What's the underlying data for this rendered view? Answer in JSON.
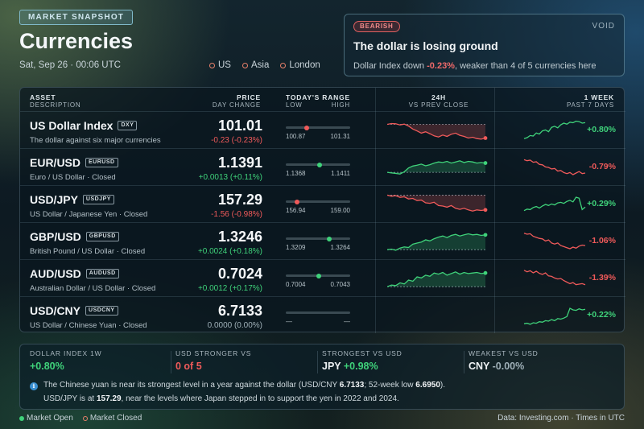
{
  "header": {
    "badge": "MARKET SNAPSHOT",
    "title": "Currencies",
    "date": "Sat, Sep 26 · 00:06 UTC",
    "sessions": [
      "US",
      "Asia",
      "London"
    ]
  },
  "alert": {
    "badge": "BEARISH",
    "logo": "VOID",
    "headline": "The dollar is losing ground",
    "detail_prefix": "Dollar Index down ",
    "detail_value": "-0.23%",
    "detail_suffix": ", weaker than 4 of 5 currencies here"
  },
  "table": {
    "headers": {
      "asset": "ASSET",
      "description": "DESCRIPTION",
      "price": "PRICE",
      "day_change": "DAY CHANGE",
      "range": "TODAY'S RANGE",
      "low": "LOW",
      "high": "HIGH",
      "h24": "24H",
      "vs_prev": "VS PREV CLOSE",
      "week": "1 WEEK",
      "past7": "PAST 7 DAYS"
    },
    "rows": [
      {
        "name": "US Dollar Index",
        "ticker": "DXY",
        "desc": "The dollar against six major currencies",
        "status": "",
        "price": "101.01",
        "change": "-0.23 (-0.23%)",
        "dir": "down",
        "low": "100.87",
        "high": "101.31",
        "range_pos": 0.32,
        "week_change": "+0.80%",
        "week_dir": "up",
        "h24": [
          0.72,
          0.75,
          0.74,
          0.7,
          0.73,
          0.66,
          0.55,
          0.48,
          0.4,
          0.45,
          0.38,
          0.3,
          0.26,
          0.33,
          0.28,
          0.36,
          0.4,
          0.32,
          0.28,
          0.22,
          0.25,
          0.2,
          0.18,
          0.22
        ],
        "week": [
          0.18,
          0.22,
          0.3,
          0.28,
          0.4,
          0.36,
          0.48,
          0.52,
          0.45,
          0.62,
          0.66,
          0.6,
          0.72,
          0.78,
          0.74,
          0.82,
          0.8,
          0.86,
          0.84,
          0.78,
          0.8
        ]
      },
      {
        "name": "EUR/USD",
        "ticker": "EURUSD",
        "desc": "Euro / US Dollar",
        "status": "Closed",
        "price": "1.1391",
        "change": "+0.0013 (+0.11%)",
        "dir": "up",
        "low": "1.1368",
        "high": "1.1411",
        "range_pos": 0.53,
        "week_change": "-0.79%",
        "week_dir": "down",
        "h24": [
          0.32,
          0.3,
          0.28,
          0.26,
          0.34,
          0.48,
          0.55,
          0.58,
          0.62,
          0.56,
          0.6,
          0.66,
          0.7,
          0.68,
          0.72,
          0.66,
          0.7,
          0.74,
          0.68,
          0.72,
          0.7,
          0.66,
          0.68,
          0.66
        ],
        "week": [
          0.8,
          0.76,
          0.78,
          0.7,
          0.72,
          0.62,
          0.6,
          0.52,
          0.5,
          0.44,
          0.46,
          0.36,
          0.38,
          0.3,
          0.26,
          0.3,
          0.22,
          0.28,
          0.34,
          0.26,
          0.28
        ]
      },
      {
        "name": "USD/JPY",
        "ticker": "USDJPY",
        "desc": "US Dollar / Japanese Yen",
        "status": "Closed",
        "price": "157.29",
        "change": "-1.56 (-0.98%)",
        "dir": "down",
        "low": "156.94",
        "high": "159.00",
        "range_pos": 0.17,
        "week_change": "+0.29%",
        "week_dir": "up",
        "h24": [
          0.84,
          0.8,
          0.82,
          0.76,
          0.78,
          0.7,
          0.72,
          0.64,
          0.66,
          0.56,
          0.54,
          0.58,
          0.46,
          0.44,
          0.4,
          0.46,
          0.36,
          0.32,
          0.36,
          0.3,
          0.26,
          0.3,
          0.28,
          0.3
        ],
        "week": [
          0.26,
          0.32,
          0.3,
          0.38,
          0.42,
          0.36,
          0.44,
          0.5,
          0.46,
          0.52,
          0.48,
          0.56,
          0.58,
          0.54,
          0.62,
          0.66,
          0.6,
          0.78,
          0.74,
          0.3,
          0.4
        ]
      },
      {
        "name": "GBP/USD",
        "ticker": "GBPUSD",
        "desc": "British Pound / US Dollar",
        "status": "Closed",
        "price": "1.3246",
        "change": "+0.0024 (+0.18%)",
        "dir": "up",
        "low": "1.3209",
        "high": "1.3264",
        "range_pos": 0.67,
        "week_change": "-1.06%",
        "week_dir": "down",
        "h24": [
          0.2,
          0.22,
          0.18,
          0.26,
          0.3,
          0.28,
          0.4,
          0.44,
          0.48,
          0.56,
          0.52,
          0.6,
          0.66,
          0.7,
          0.64,
          0.72,
          0.76,
          0.7,
          0.74,
          0.78,
          0.74,
          0.76,
          0.72,
          0.74
        ],
        "week": [
          0.82,
          0.78,
          0.8,
          0.7,
          0.66,
          0.62,
          0.6,
          0.52,
          0.56,
          0.44,
          0.4,
          0.44,
          0.34,
          0.3,
          0.26,
          0.22,
          0.28,
          0.24,
          0.32,
          0.36,
          0.34
        ]
      },
      {
        "name": "AUD/USD",
        "ticker": "AUDUSD",
        "desc": "Australian Dollar / US Dollar",
        "status": "Closed",
        "price": "0.7024",
        "change": "+0.0012 (+0.17%)",
        "dir": "up",
        "low": "0.7004",
        "high": "0.7043",
        "range_pos": 0.51,
        "week_change": "-1.39%",
        "week_dir": "down",
        "h24": [
          0.2,
          0.26,
          0.24,
          0.34,
          0.3,
          0.44,
          0.4,
          0.56,
          0.52,
          0.62,
          0.58,
          0.7,
          0.66,
          0.72,
          0.62,
          0.68,
          0.74,
          0.66,
          0.72,
          0.68,
          0.7,
          0.72,
          0.68,
          0.7
        ],
        "week": [
          0.82,
          0.76,
          0.8,
          0.72,
          0.78,
          0.7,
          0.66,
          0.72,
          0.6,
          0.58,
          0.52,
          0.48,
          0.5,
          0.42,
          0.36,
          0.3,
          0.34,
          0.26,
          0.28,
          0.3,
          0.26
        ]
      },
      {
        "name": "USD/CNY",
        "ticker": "USDCNY",
        "desc": "US Dollar / Chinese Yuan",
        "status": "Closed",
        "price": "6.7133",
        "change": "0.0000 (0.00%)",
        "dir": "flat",
        "low": "—",
        "high": "—",
        "range_pos": null,
        "week_change": "+0.22%",
        "week_dir": "up",
        "h24": [],
        "week": [
          0.18,
          0.2,
          0.16,
          0.22,
          0.2,
          0.26,
          0.24,
          0.3,
          0.28,
          0.34,
          0.3,
          0.38,
          0.36,
          0.4,
          0.46,
          0.78,
          0.72,
          0.7,
          0.76,
          0.72,
          0.74
        ]
      }
    ]
  },
  "stats": [
    {
      "label": "DOLLAR INDEX 1W",
      "value_main": "",
      "value_colored": "+0.80%",
      "color": "up"
    },
    {
      "label": "USD STRONGER VS",
      "value_main": "",
      "value_colored": "0 of 5",
      "color": "down"
    },
    {
      "label": "STRONGEST VS USD",
      "value_main": "JPY ",
      "value_colored": "+0.98%",
      "color": "up"
    },
    {
      "label": "WEAKEST VS USD",
      "value_main": "CNY ",
      "value_colored": "-0.00%",
      "color": "flat"
    }
  ],
  "notes": {
    "line1_a": "The Chinese yuan is near its strongest level in a year against the dollar (USD/CNY ",
    "line1_b": "6.7133",
    "line1_c": "; 52-week low ",
    "line1_d": "6.6950",
    "line1_e": ").",
    "line2_a": "USD/JPY is at ",
    "line2_b": "157.29",
    "line2_c": ", near the levels where Japan stepped in to support the yen in 2022 and 2024."
  },
  "footer": {
    "open": "Market Open",
    "closed": "Market Closed",
    "source": "Data: Investing.com  ·  Times in UTC"
  },
  "colors": {
    "up": "#3fd27a",
    "down": "#f05a5a",
    "flat": "#9fb0b8",
    "accent": "#7fb8c8"
  }
}
